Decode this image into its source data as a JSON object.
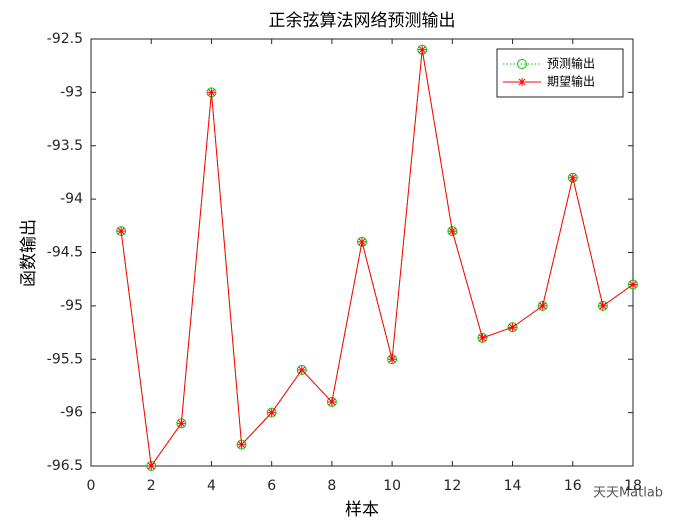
{
  "chart_data": {
    "type": "line",
    "title": "正余弦算法网络预测输出",
    "xlabel": "样本",
    "ylabel": "函数输出",
    "x": [
      1,
      2,
      3,
      4,
      5,
      6,
      7,
      8,
      9,
      10,
      11,
      12,
      13,
      14,
      15,
      16,
      17,
      18
    ],
    "series": [
      {
        "name": "预测输出",
        "color": "#00cc00",
        "marker": "circle",
        "linestyle": "dotted",
        "values": [
          -94.3,
          -96.5,
          -96.1,
          -93.0,
          -96.3,
          -96.0,
          -95.6,
          -95.9,
          -94.4,
          -95.5,
          -92.6,
          -94.3,
          -95.3,
          -95.2,
          -95.0,
          -93.8,
          -95.0,
          -94.8
        ]
      },
      {
        "name": "期望输出",
        "color": "#ff0000",
        "marker": "asterisk",
        "linestyle": "solid",
        "values": [
          -94.3,
          -96.5,
          -96.1,
          -93.0,
          -96.3,
          -96.0,
          -95.6,
          -95.9,
          -94.4,
          -95.5,
          -92.6,
          -94.3,
          -95.3,
          -95.2,
          -95.0,
          -93.8,
          -95.0,
          -94.8
        ]
      }
    ],
    "xlim": [
      0,
      18
    ],
    "xticks": [
      0,
      2,
      4,
      6,
      8,
      10,
      12,
      14,
      16,
      18
    ],
    "ylim": [
      -96.5,
      -92.5
    ],
    "yticks": [
      -96.5,
      -96,
      -95.5,
      -95,
      -94.5,
      -94,
      -93.5,
      -93,
      -92.5
    ],
    "legend": "northeast",
    "watermark": "天天Matlab"
  }
}
